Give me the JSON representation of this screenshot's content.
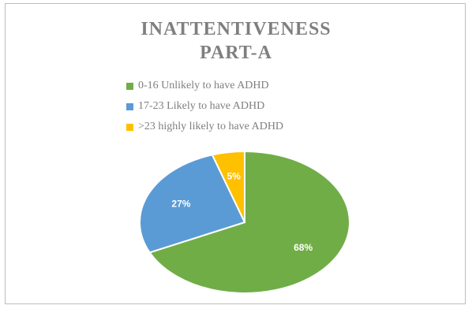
{
  "chart_data": {
    "type": "pie",
    "title": [
      "INATTENTIVENESS",
      "PART-A"
    ],
    "categories": [
      "0-16 Unlikely to have ADHD",
      "17-23 Likely to have ADHD",
      ">23 highly likely to have ADHD"
    ],
    "values": [
      68,
      27,
      5
    ],
    "data_labels": [
      "68%",
      "27%",
      "5%"
    ],
    "colors": [
      "#70ad47",
      "#5b9bd5",
      "#ffc000"
    ],
    "legend_position": "top"
  }
}
